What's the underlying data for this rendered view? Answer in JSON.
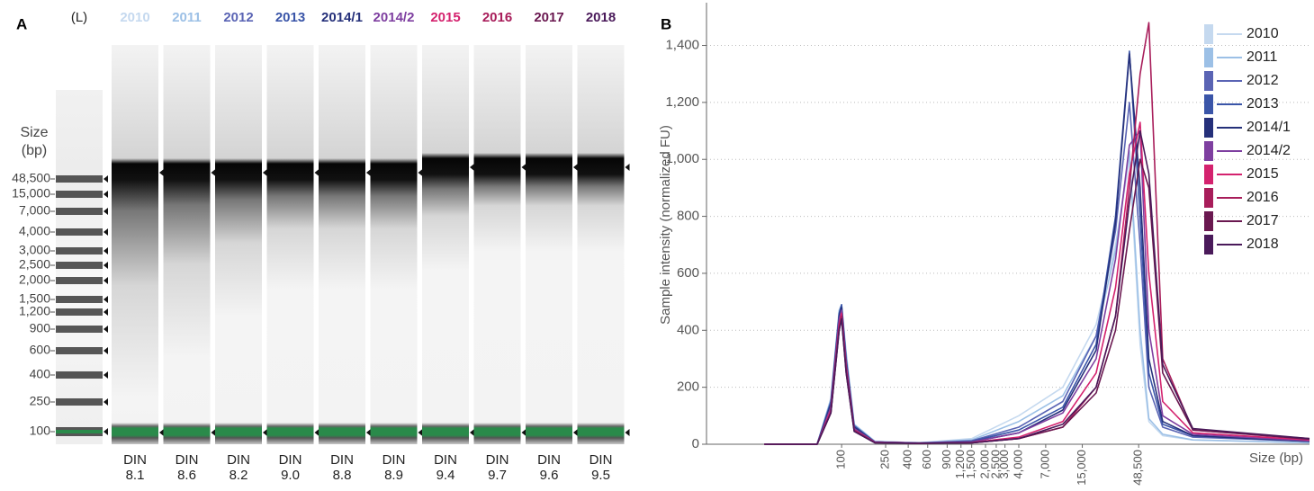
{
  "gel": {
    "panel_label": "A",
    "ladder_label": "(L)",
    "size_title": "Size",
    "size_unit": "(bp)",
    "ladder_sizes": [
      "48,500",
      "15,000",
      "7,000",
      "4,000",
      "3,000",
      "2,500",
      "2,000",
      "1,500",
      "1,200",
      "900",
      "600",
      "400",
      "250",
      "100"
    ],
    "din_label": "DIN",
    "din": [
      "8.1",
      "8.6",
      "8.2",
      "9.0",
      "8.8",
      "8.9",
      "9.4",
      "9.7",
      "9.6",
      "9.5"
    ]
  },
  "chart_data": {
    "type": "line",
    "panel_label": "B",
    "x_label": "Size (bp)",
    "y_label": "Sample intensity (normalized FU)",
    "x_scale": "log",
    "xlim": [
      6,
      1700000
    ],
    "xticks": [
      100,
      250,
      400,
      600,
      900,
      {
        "value": 1200,
        "label": "1,200"
      },
      {
        "value": 1500,
        "label": "1,500"
      },
      {
        "value": 2000,
        "label": "2,000"
      },
      {
        "value": 2500,
        "label": "2,500"
      },
      {
        "value": 3000,
        "label": "3,000"
      },
      {
        "value": 4000,
        "label": "4,000"
      },
      {
        "value": 7000,
        "label": "7,000"
      },
      {
        "value": 15000,
        "label": "15,000"
      },
      {
        "value": 48500,
        "label": "48,500"
      }
    ],
    "ylim": [
      0,
      1550
    ],
    "yticks": [
      0,
      200,
      400,
      600,
      800,
      {
        "value": 1000,
        "label": "1,000"
      },
      {
        "value": 1200,
        "label": "1,200"
      },
      {
        "value": 1400,
        "label": "1,400"
      }
    ],
    "grid": true,
    "legend": "upper right",
    "x": [
      20,
      60,
      80,
      95,
      100,
      110,
      130,
      200,
      500,
      1500,
      4000,
      10000,
      20000,
      30000,
      40000,
      50000,
      60000,
      80000,
      150000,
      1700000
    ],
    "series": [
      {
        "name": "2010",
        "color": "#c5d9ef",
        "values": [
          0,
          0,
          150,
          450,
          480,
          300,
          60,
          10,
          5,
          20,
          100,
          200,
          420,
          700,
          1000,
          350,
          80,
          30,
          15,
          5
        ]
      },
      {
        "name": "2011",
        "color": "#9cc0e6",
        "values": [
          0,
          0,
          160,
          470,
          490,
          320,
          70,
          10,
          5,
          15,
          80,
          170,
          380,
          680,
          1030,
          400,
          90,
          35,
          15,
          5
        ]
      },
      {
        "name": "2012",
        "color": "#5a64b4",
        "values": [
          0,
          0,
          140,
          440,
          470,
          290,
          60,
          8,
          4,
          12,
          60,
          150,
          380,
          750,
          1200,
          700,
          200,
          60,
          25,
          10
        ]
      },
      {
        "name": "2013",
        "color": "#3a55a8",
        "values": [
          0,
          0,
          150,
          460,
          490,
          300,
          65,
          8,
          4,
          10,
          50,
          130,
          350,
          800,
          1380,
          800,
          250,
          70,
          30,
          10
        ]
      },
      {
        "name": "2014/1",
        "color": "#25307a",
        "values": [
          0,
          0,
          140,
          450,
          480,
          290,
          60,
          8,
          4,
          8,
          40,
          120,
          330,
          780,
          1370,
          900,
          300,
          80,
          30,
          10
        ]
      },
      {
        "name": "2014/2",
        "color": "#7e3fa0",
        "values": [
          0,
          0,
          130,
          440,
          470,
          280,
          55,
          8,
          4,
          8,
          40,
          110,
          300,
          650,
          1050,
          1100,
          400,
          100,
          35,
          12
        ]
      },
      {
        "name": "2015",
        "color": "#d4226e",
        "values": [
          0,
          0,
          120,
          420,
          460,
          270,
          50,
          6,
          3,
          6,
          25,
          80,
          250,
          550,
          950,
          1130,
          600,
          150,
          40,
          15
        ]
      },
      {
        "name": "2016",
        "color": "#a81d5a",
        "values": [
          0,
          0,
          110,
          410,
          450,
          260,
          50,
          6,
          3,
          5,
          20,
          60,
          200,
          450,
          900,
          1300,
          1480,
          300,
          50,
          20
        ]
      },
      {
        "name": "2017",
        "color": "#6a1850",
        "values": [
          0,
          0,
          110,
          400,
          440,
          250,
          45,
          5,
          3,
          5,
          20,
          60,
          180,
          400,
          750,
          1000,
          900,
          250,
          50,
          18
        ]
      },
      {
        "name": "2018",
        "color": "#4a1a5a",
        "values": [
          0,
          0,
          110,
          400,
          440,
          250,
          45,
          5,
          3,
          5,
          20,
          70,
          200,
          450,
          850,
          1100,
          950,
          280,
          55,
          20
        ]
      }
    ]
  }
}
